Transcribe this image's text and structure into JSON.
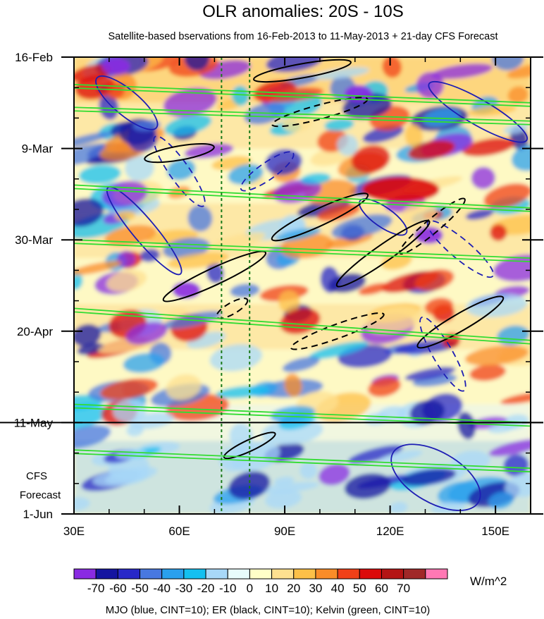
{
  "chart_data": {
    "type": "heatmap",
    "title": "OLR anomalies: 20S - 10S",
    "subtitle": "Satellite-based bservations from 16-Feb-2013 to 11-May-2013 + 21-day CFS Forecast",
    "x_axis": {
      "range": [
        30,
        160
      ],
      "ticks": [
        {
          "value": 30,
          "label": "30E"
        },
        {
          "value": 60,
          "label": "60E"
        },
        {
          "value": 90,
          "label": "90E"
        },
        {
          "value": 120,
          "label": "120E"
        },
        {
          "value": 150,
          "label": "150E"
        }
      ],
      "minor_step": 10
    },
    "y_axis": {
      "range": [
        "2013-02-16",
        "2013-06-01"
      ],
      "ticks": [
        {
          "date": "2013-02-16",
          "label": "16-Feb"
        },
        {
          "date": "2013-03-09",
          "label": "9-Mar"
        },
        {
          "date": "2013-03-30",
          "label": "30-Mar"
        },
        {
          "date": "2013-04-20",
          "label": "20-Apr"
        },
        {
          "date": "2013-05-11",
          "label": "11-May"
        },
        {
          "date": "2013-06-01",
          "label": "1-Jun"
        }
      ],
      "minor_step_days": 7
    },
    "forecast_start": "2013-05-11",
    "forecast_label": [
      "CFS",
      "Forecast"
    ],
    "reference_longitudes": [
      72,
      80
    ],
    "colorbar": {
      "unit": "W/m^2",
      "labels": [
        "-70",
        "-60",
        "-50",
        "-40",
        "-30",
        "-20",
        "-10",
        "0",
        "10",
        "20",
        "30",
        "40",
        "50",
        "60",
        "70"
      ],
      "colors": [
        "#8a2be2",
        "#1414a0",
        "#2828c8",
        "#4878e0",
        "#2aa0ee",
        "#14c0f0",
        "#a8d8f8",
        "#e8fcfc",
        "#ffffc8",
        "#fee090",
        "#fdc048",
        "#fa8c28",
        "#f04018",
        "#dc0a0a",
        "#b41414",
        "#a02828",
        "#ff78b4"
      ]
    },
    "contours_note": "MJO (blue, CINT=10); ER (black, CINT=10); Kelvin (green, CINT=10)",
    "contour_colors": {
      "mjo": "#1e1eb4",
      "er": "#000000",
      "kelvin": "#32dc32"
    }
  }
}
